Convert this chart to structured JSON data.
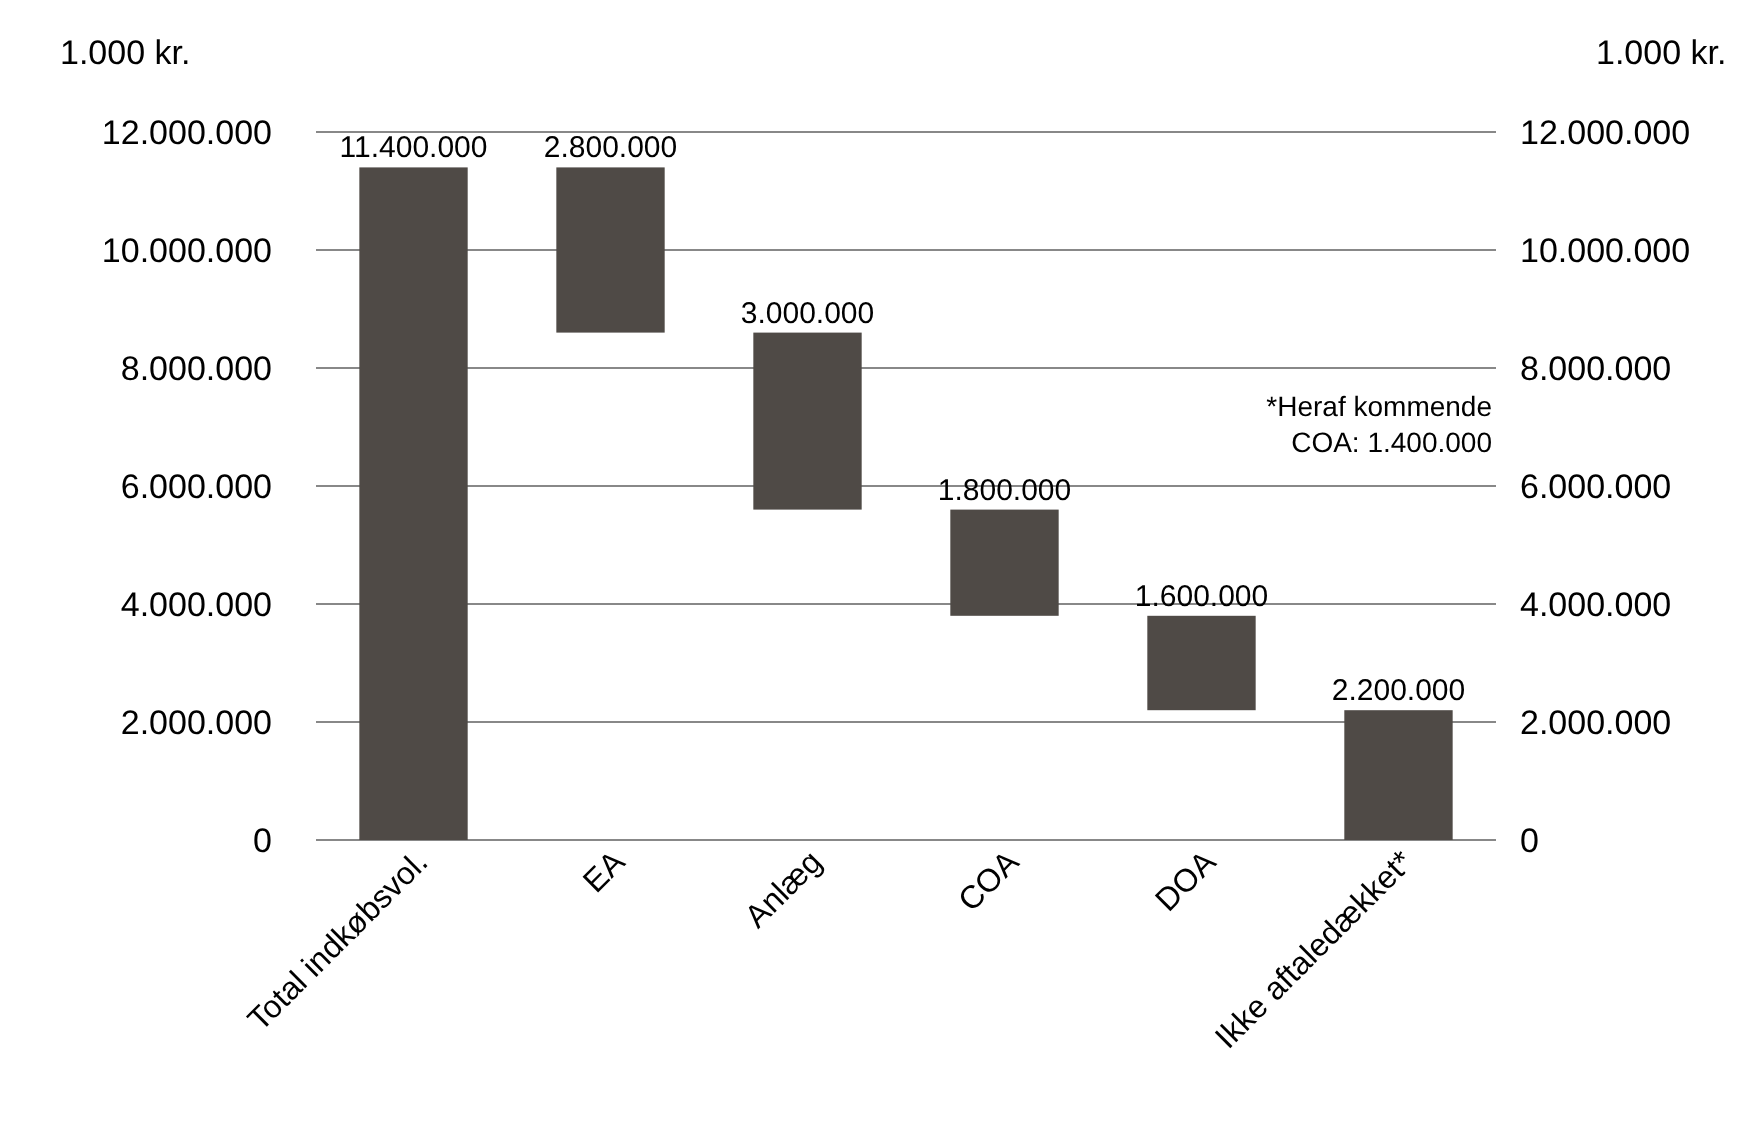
{
  "chart_data": {
    "type": "bar",
    "ylabel": "1.000 kr.",
    "y2label": "1.000 kr.",
    "categories": [
      "Total indkøbsvol.",
      "EA",
      "Anlæg",
      "COA",
      "DOA",
      "Ikke aftaledækket*"
    ],
    "values": [
      11400000,
      2800000,
      3000000,
      1800000,
      1600000,
      2200000
    ],
    "base": [
      0,
      8600000,
      5600000,
      3800000,
      2200000,
      0
    ],
    "value_labels": [
      "11.400.000",
      "2.800.000",
      "3.000.000",
      "1.800.000",
      "1.600.000",
      "2.200.000"
    ],
    "color": "#4f4a46",
    "ylim": [
      0,
      12000000
    ],
    "yticks": [
      {
        "value": 0,
        "label": "0"
      },
      {
        "value": 2000000,
        "label": "2.000.000"
      },
      {
        "value": 4000000,
        "label": "4.000.000"
      },
      {
        "value": 6000000,
        "label": "6.000.000"
      },
      {
        "value": 8000000,
        "label": "8.000.000"
      },
      {
        "value": 10000000,
        "label": "10.000.000"
      },
      {
        "value": 12000000,
        "label": "12.000.000"
      }
    ],
    "y2lim": [
      0,
      12000000
    ],
    "y2ticks": [
      {
        "value": 0,
        "label": "0"
      },
      {
        "value": 2000000,
        "label": "2.000.000"
      },
      {
        "value": 4000000,
        "label": "4.000.000"
      },
      {
        "value": 6000000,
        "label": "6.000.000"
      },
      {
        "value": 8000000,
        "label": "8.000.000"
      },
      {
        "value": 10000000,
        "label": "10.000.000"
      },
      {
        "value": 12000000,
        "label": "12.000.000"
      }
    ],
    "grid": "y",
    "annotations": [
      "*Heraf kommende\nCOA: 1.400.000"
    ]
  }
}
